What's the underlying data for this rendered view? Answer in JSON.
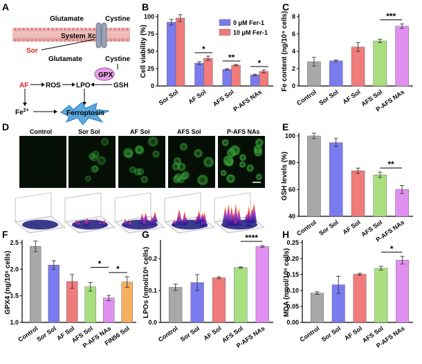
{
  "panel_labels": [
    "A",
    "B",
    "C",
    "D",
    "E",
    "F",
    "G",
    "H"
  ],
  "diagram_a": {
    "glutamate_top": "Glutamate",
    "cystine_top": "Cystine",
    "system_xc": "System Xc",
    "sor": "Sor",
    "glutamate_bottom": "Glutamate",
    "cystine_bottom": "Cystine",
    "gpx": "GPX",
    "af": "AF",
    "ros": "ROS",
    "lpo": "LPO",
    "gsh": "GSH",
    "fe": "Fe",
    "fe_sup": "2+",
    "ferroptosis": "Ferroptosis"
  },
  "images_d": {
    "labels": [
      "Control",
      "Sor Sol",
      "AF Sol",
      "AFS Sol",
      "P-AFS NAs"
    ],
    "fluor_intensity": [
      0.0,
      0.35,
      0.55,
      0.75,
      1.0
    ]
  },
  "chart_data": [
    {
      "panel": "B",
      "type": "bar",
      "ylabel": "Cell viability (%)",
      "categories": [
        "Sor Sol",
        "AF Sol",
        "AFS Sol",
        "P-AFS NAs"
      ],
      "ylim": [
        0,
        100
      ],
      "yticks": [
        0,
        25,
        50,
        75,
        100
      ],
      "series": [
        {
          "name": "0 μM Fer-1",
          "color": "#7b7bf0",
          "values": [
            92,
            33,
            24,
            16
          ],
          "errors": [
            4,
            2,
            1,
            1
          ]
        },
        {
          "name": "10 μM Fer-1",
          "color": "#f07b7b",
          "values": [
            98,
            40,
            30,
            21
          ],
          "errors": [
            5,
            3,
            1,
            2
          ]
        }
      ],
      "legend_position": "top-right",
      "annotations": [
        {
          "category": "AF Sol",
          "text": "*"
        },
        {
          "category": "AFS Sol",
          "text": "**"
        },
        {
          "category": "P-AFS NAs",
          "text": "*"
        }
      ]
    },
    {
      "panel": "C",
      "type": "bar",
      "ylabel": "Fe content (ng/10⁴ cells)",
      "categories": [
        "Control",
        "Sor Sol",
        "AF Sol",
        "AFS Sol",
        "P-AFS NAs"
      ],
      "ylim": [
        0,
        8
      ],
      "yticks": [
        0,
        2,
        4,
        6,
        8
      ],
      "values": [
        2.8,
        2.9,
        4.5,
        5.2,
        6.9
      ],
      "errors": [
        0.5,
        0.1,
        0.5,
        0.2,
        0.25
      ],
      "colors": [
        "#a8a8a8",
        "#7b7bf0",
        "#f07b7b",
        "#a8e080",
        "#e090f0"
      ],
      "annotations": [
        {
          "from": "AFS Sol",
          "to": "P-AFS NAs",
          "text": "***"
        }
      ]
    },
    {
      "panel": "E",
      "type": "bar",
      "ylabel": "GSH levels (%)",
      "categories": [
        "Control",
        "Sor Sol",
        "AF Sol",
        "AFS Sol",
        "P-AFS NAs"
      ],
      "ylim": [
        40,
        100
      ],
      "yticks": [
        40,
        60,
        80,
        100
      ],
      "values": [
        100,
        95,
        74,
        71,
        60
      ],
      "errors": [
        2,
        3,
        2,
        2,
        3
      ],
      "colors": [
        "#a8a8a8",
        "#7b7bf0",
        "#f07b7b",
        "#a8e080",
        "#e090f0"
      ],
      "annotations": [
        {
          "from": "AFS Sol",
          "to": "P-AFS NAs",
          "text": "**"
        }
      ]
    },
    {
      "panel": "F",
      "type": "bar",
      "ylabel": "GPX4 (ng/10⁶ cells)",
      "categories": [
        "Control",
        "Sor Sol",
        "AF Sol",
        "AFS Sol",
        "P-AFS NAs",
        "FIN56 Sol"
      ],
      "ylim": [
        1.0,
        2.5
      ],
      "yticks": [
        1.0,
        1.5,
        2.0,
        2.5
      ],
      "values": [
        2.43,
        2.08,
        1.77,
        1.67,
        1.46,
        1.76
      ],
      "errors": [
        0.1,
        0.08,
        0.13,
        0.08,
        0.05,
        0.1
      ],
      "colors": [
        "#a8a8a8",
        "#7b7bf0",
        "#f07b7b",
        "#a8e080",
        "#e090f0",
        "#f5b060"
      ],
      "annotations": [
        {
          "from": "AFS Sol",
          "to": "P-AFS NAs",
          "text": "*"
        },
        {
          "from": "P-AFS NAs",
          "to": "FIN56 Sol",
          "text": "*"
        }
      ]
    },
    {
      "panel": "G",
      "type": "bar",
      "ylabel": "LPOs (nmol/10⁶ cells)",
      "categories": [
        "Control",
        "Sor Sol",
        "AF Sol",
        "AFS Sol",
        "P-AFS NAs"
      ],
      "ylim": [
        0,
        0.25
      ],
      "yticks": [
        0.0,
        0.1,
        0.2
      ],
      "values": [
        0.11,
        0.125,
        0.14,
        0.172,
        0.238
      ],
      "errors": [
        0.01,
        0.025,
        0.003,
        0.002,
        0.003
      ],
      "colors": [
        "#a8a8a8",
        "#7b7bf0",
        "#f07b7b",
        "#a8e080",
        "#e090f0"
      ],
      "annotations": [
        {
          "from": "AFS Sol",
          "to": "P-AFS NAs",
          "text": "****"
        }
      ]
    },
    {
      "panel": "H",
      "type": "bar",
      "ylabel": "MDA (nmol/10⁶ cells)",
      "categories": [
        "Control",
        "Sor Sol",
        "AF Sol",
        "AFS Sol",
        "P-AFS NAs"
      ],
      "ylim": [
        0,
        0.25
      ],
      "yticks": [
        0.0,
        0.05,
        0.1,
        0.15,
        0.2,
        0.25
      ],
      "values": [
        0.092,
        0.118,
        0.151,
        0.17,
        0.195
      ],
      "errors": [
        0.004,
        0.027,
        0.003,
        0.006,
        0.012
      ],
      "colors": [
        "#a8a8a8",
        "#7b7bf0",
        "#f07b7b",
        "#a8e080",
        "#e090f0"
      ],
      "annotations": [
        {
          "from": "AFS Sol",
          "to": "P-AFS NAs",
          "text": "*"
        }
      ]
    }
  ]
}
